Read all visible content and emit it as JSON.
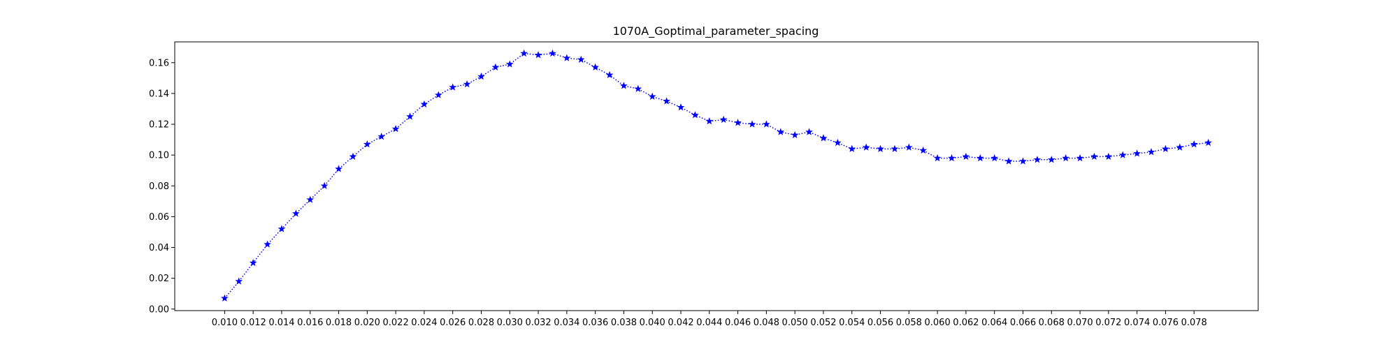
{
  "chart_data": {
    "type": "line",
    "title": "1070A_Goptimal_parameter_spacing",
    "xlabel": "",
    "ylabel": "",
    "xlim": [
      0.0065,
      0.0825
    ],
    "ylim": [
      -0.001,
      0.1735
    ],
    "grid": false,
    "line_style": "dotted",
    "marker": "star",
    "series_color": "#0000ff",
    "x_ticks": [
      "0.010",
      "0.012",
      "0.014",
      "0.016",
      "0.018",
      "0.020",
      "0.022",
      "0.024",
      "0.026",
      "0.028",
      "0.030",
      "0.032",
      "0.034",
      "0.036",
      "0.038",
      "0.040",
      "0.042",
      "0.044",
      "0.046",
      "0.048",
      "0.050",
      "0.052",
      "0.054",
      "0.056",
      "0.058",
      "0.060",
      "0.062",
      "0.064",
      "0.066",
      "0.068",
      "0.070",
      "0.072",
      "0.074",
      "0.076",
      "0.078"
    ],
    "y_ticks": [
      "0.00",
      "0.02",
      "0.04",
      "0.06",
      "0.08",
      "0.10",
      "0.12",
      "0.14",
      "0.16"
    ],
    "series": [
      {
        "x": [
          0.01,
          0.011,
          0.012,
          0.013,
          0.014,
          0.015,
          0.016,
          0.017,
          0.018,
          0.019,
          0.02,
          0.021,
          0.022,
          0.023,
          0.024,
          0.025,
          0.026,
          0.027,
          0.028,
          0.029,
          0.03,
          0.031,
          0.032,
          0.033,
          0.034,
          0.035,
          0.036,
          0.037,
          0.038,
          0.039,
          0.04,
          0.041,
          0.042,
          0.043,
          0.044,
          0.045,
          0.046,
          0.047,
          0.048,
          0.049,
          0.05,
          0.051,
          0.052,
          0.053,
          0.054,
          0.055,
          0.056,
          0.057,
          0.058,
          0.059,
          0.06,
          0.061,
          0.062,
          0.063,
          0.064,
          0.065,
          0.066,
          0.067,
          0.068,
          0.069,
          0.07,
          0.071,
          0.072,
          0.073,
          0.074,
          0.075,
          0.076,
          0.077,
          0.078,
          0.079
        ],
        "values": [
          0.007,
          0.018,
          0.03,
          0.042,
          0.052,
          0.062,
          0.071,
          0.08,
          0.091,
          0.099,
          0.107,
          0.112,
          0.117,
          0.125,
          0.133,
          0.139,
          0.144,
          0.146,
          0.151,
          0.157,
          0.159,
          0.166,
          0.165,
          0.166,
          0.163,
          0.162,
          0.157,
          0.152,
          0.145,
          0.143,
          0.138,
          0.135,
          0.131,
          0.126,
          0.122,
          0.123,
          0.121,
          0.12,
          0.12,
          0.115,
          0.113,
          0.115,
          0.111,
          0.108,
          0.104,
          0.105,
          0.104,
          0.104,
          0.105,
          0.103,
          0.098,
          0.098,
          0.099,
          0.098,
          0.098,
          0.096,
          0.096,
          0.097,
          0.097,
          0.098,
          0.098,
          0.099,
          0.099,
          0.1,
          0.101,
          0.102,
          0.104,
          0.105,
          0.107,
          0.108
        ]
      }
    ]
  }
}
